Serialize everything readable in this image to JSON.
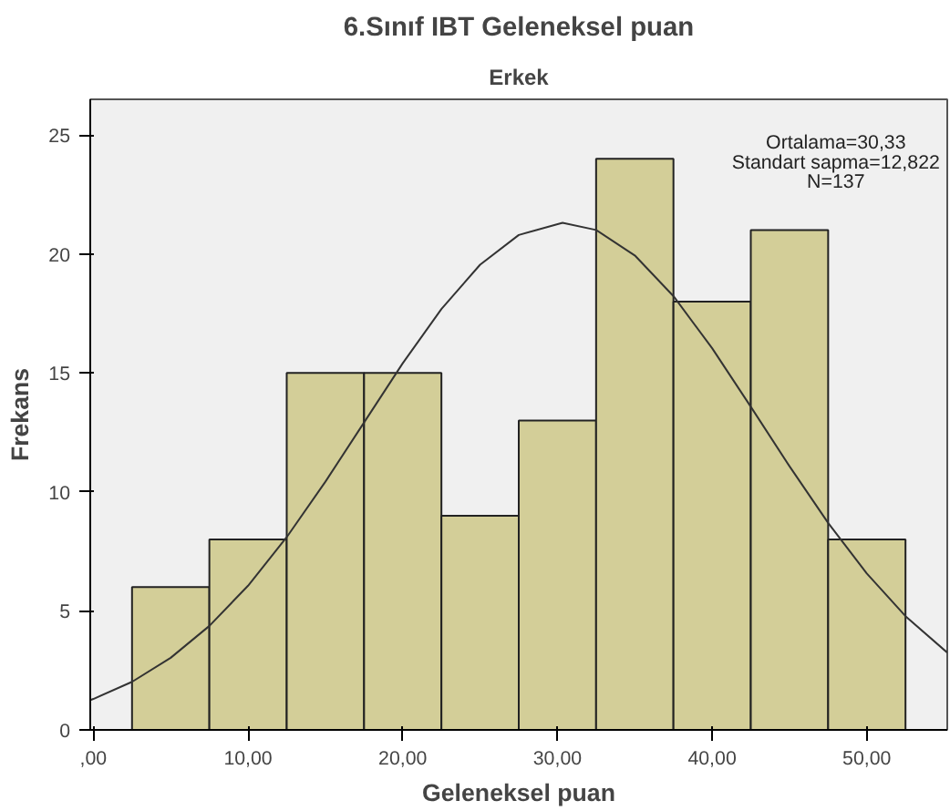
{
  "chart_data": {
    "type": "histogram",
    "title": "6.Sınıf IBT Geleneksel puan",
    "subtitle": "Erkek",
    "xlabel": "Geleneksel puan",
    "ylabel": "Frekans",
    "bins": [
      2.5,
      7.5,
      12.5,
      17.5,
      22.5,
      27.5,
      32.5,
      37.5,
      42.5,
      47.5,
      52.5
    ],
    "values": [
      6,
      8,
      15,
      15,
      9,
      13,
      24,
      18,
      21,
      8
    ],
    "color": "#d3ce98",
    "series": [
      {
        "type": "line",
        "color": "#333333",
        "x": [
          -0.2,
          0,
          2.5,
          5,
          7.5,
          10,
          12.5,
          15,
          17.5,
          20,
          22.5,
          25,
          27.5,
          30.33,
          32.5,
          35,
          37.5,
          40,
          42.5,
          45,
          47.5,
          50,
          52.5,
          55.2
        ],
        "values": [
          1.25,
          1.3,
          2.02,
          3.03,
          4.37,
          6.06,
          8.1,
          10.43,
          12.92,
          15.41,
          17.69,
          19.55,
          20.8,
          21.31,
          21.01,
          19.94,
          18.23,
          16.04,
          13.58,
          11.08,
          8.7,
          6.57,
          4.78,
          3.25
        ]
      }
    ],
    "xlim": [
      -0.2,
      55.2
    ],
    "ylim": [
      0,
      26.5
    ],
    "xticks": [
      {
        "value": 0,
        "label": ",00"
      },
      {
        "value": 10,
        "label": "10,00"
      },
      {
        "value": 20,
        "label": "20,00"
      },
      {
        "value": 30,
        "label": "30,00"
      },
      {
        "value": 40,
        "label": "40,00"
      },
      {
        "value": 50,
        "label": "50,00"
      }
    ],
    "yticks": [
      0,
      5,
      10,
      15,
      20,
      25
    ],
    "annotations": [
      "Ortalama=30,33",
      "Standart sapma=12,822",
      "N=137"
    ],
    "grid": false
  }
}
